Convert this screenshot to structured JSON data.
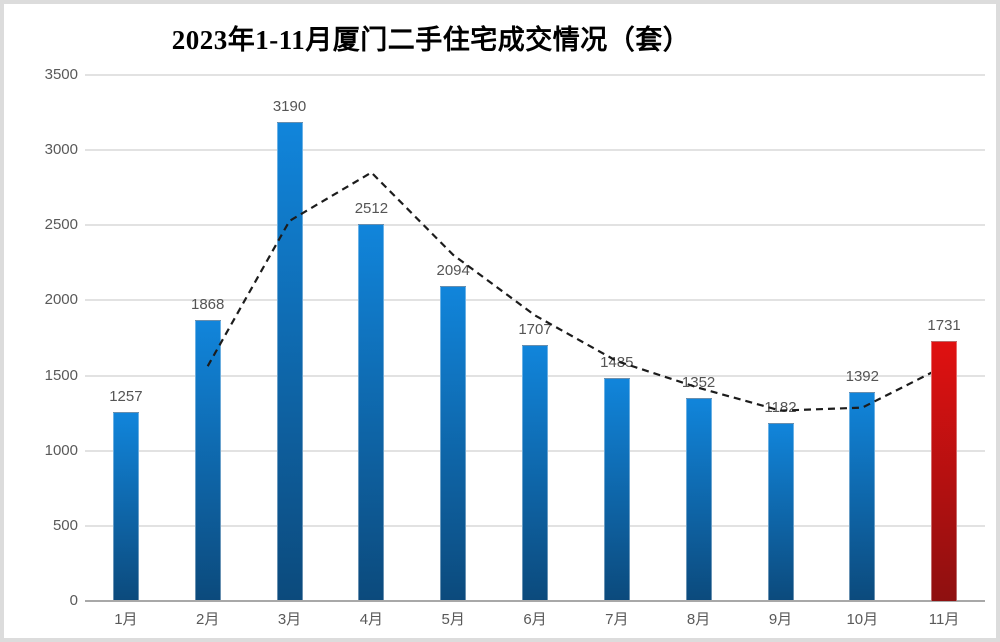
{
  "chart_data": {
    "type": "bar",
    "title": "2023年1-11月厦门二手住宅成交情况（套）",
    "categories": [
      "1月",
      "2月",
      "3月",
      "4月",
      "5月",
      "6月",
      "7月",
      "8月",
      "9月",
      "10月",
      "11月"
    ],
    "values": [
      1257,
      1868,
      3190,
      2512,
      2094,
      1707,
      1485,
      1352,
      1182,
      1392,
      1731
    ],
    "data_labels": [
      "1257",
      "1868",
      "3190",
      "2512",
      "2094",
      "1707",
      "1485",
      "1352",
      "1182",
      "1392",
      "1731"
    ],
    "highlight_index": 10,
    "ylim": [
      0,
      3500
    ],
    "yticks": [
      0,
      500,
      1000,
      1500,
      2000,
      2500,
      3000,
      3500
    ],
    "grid": true,
    "legend": "none",
    "overlay_line": {
      "style": "dashed",
      "color": "#1c1c1c",
      "start_category": "2月",
      "values": [
        1562.5,
        2529,
        2851,
        2303,
        1900.5,
        1596,
        1418.5,
        1267,
        1287,
        1561.5
      ]
    },
    "colors": {
      "bar_top": "#1185db",
      "bar_bottom": "#0c4a7c",
      "highlight_top": "#e01111",
      "highlight_bottom": "#8e1010",
      "gridline": "#e2e2e2",
      "axis_line": "#a8a8a8",
      "tick_label": "#595959",
      "data_label": "#555555",
      "title": "#000000"
    }
  }
}
